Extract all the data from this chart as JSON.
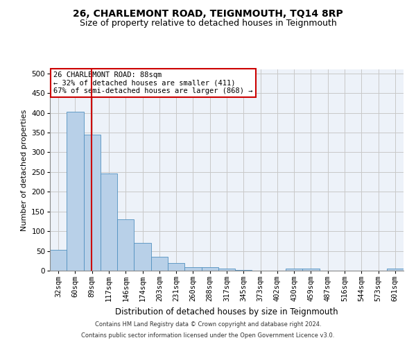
{
  "title1": "26, CHARLEMONT ROAD, TEIGNMOUTH, TQ14 8RP",
  "title2": "Size of property relative to detached houses in Teignmouth",
  "xlabel": "Distribution of detached houses by size in Teignmouth",
  "ylabel": "Number of detached properties",
  "bar_labels": [
    "32sqm",
    "60sqm",
    "89sqm",
    "117sqm",
    "146sqm",
    "174sqm",
    "203sqm",
    "231sqm",
    "260sqm",
    "288sqm",
    "317sqm",
    "345sqm",
    "373sqm",
    "402sqm",
    "430sqm",
    "459sqm",
    "487sqm",
    "516sqm",
    "544sqm",
    "573sqm",
    "601sqm"
  ],
  "bar_values": [
    52,
    403,
    345,
    247,
    130,
    70,
    35,
    20,
    8,
    8,
    5,
    2,
    0,
    0,
    6,
    5,
    0,
    0,
    0,
    0,
    5
  ],
  "bar_color": "#b8d0e8",
  "bar_edge_color": "#5090c0",
  "bar_edge_width": 0.6,
  "grid_color": "#c8c8c8",
  "background_color": "#edf2f9",
  "red_line_x": 1.97,
  "annotation_text": "26 CHARLEMONT ROAD: 88sqm\n← 32% of detached houses are smaller (411)\n67% of semi-detached houses are larger (868) →",
  "annotation_box_color": "#ffffff",
  "annotation_box_edge": "#cc0000",
  "ylim": [
    0,
    510
  ],
  "yticks": [
    0,
    50,
    100,
    150,
    200,
    250,
    300,
    350,
    400,
    450,
    500
  ],
  "footer1": "Contains HM Land Registry data © Crown copyright and database right 2024.",
  "footer2": "Contains public sector information licensed under the Open Government Licence v3.0.",
  "title1_fontsize": 10,
  "title2_fontsize": 9,
  "xlabel_fontsize": 8.5,
  "ylabel_fontsize": 8,
  "tick_fontsize": 7.5,
  "annotation_fontsize": 7.5,
  "footer_fontsize": 6
}
